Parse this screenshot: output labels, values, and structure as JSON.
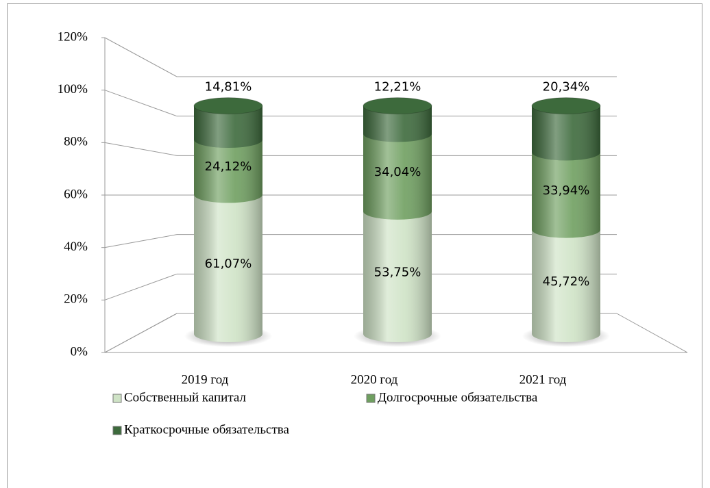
{
  "chart_data": {
    "type": "bar",
    "categories": [
      "2019 год",
      "2020 год",
      "2021 год"
    ],
    "series": [
      {
        "name": "Собственный капитал",
        "color": "#cfe3c6",
        "values": [
          61.07,
          53.75,
          45.72
        ],
        "value_labels": [
          "61,07%",
          "53,75%",
          "45,72%"
        ]
      },
      {
        "name": "Долгосрочные обязательства",
        "color": "#6f9f60",
        "values": [
          24.12,
          34.04,
          33.94
        ],
        "value_labels": [
          "24,12%",
          "34,04%",
          "33,94%"
        ]
      },
      {
        "name": "Краткосрочные обязательства",
        "color": "#3d6a3c",
        "values": [
          14.81,
          12.21,
          20.34
        ],
        "value_labels": [
          "14,81%",
          "12,21%",
          "20,34%"
        ]
      }
    ],
    "stacked": true,
    "ylim": [
      0,
      120
    ],
    "yticks": [
      {
        "value": 0,
        "label": "0%"
      },
      {
        "value": 20,
        "label": "20%"
      },
      {
        "value": 40,
        "label": "40%"
      },
      {
        "value": 60,
        "label": "60%"
      },
      {
        "value": 80,
        "label": "80%"
      },
      {
        "value": 100,
        "label": "100%"
      },
      {
        "value": 120,
        "label": "120%"
      }
    ],
    "grid": true
  }
}
